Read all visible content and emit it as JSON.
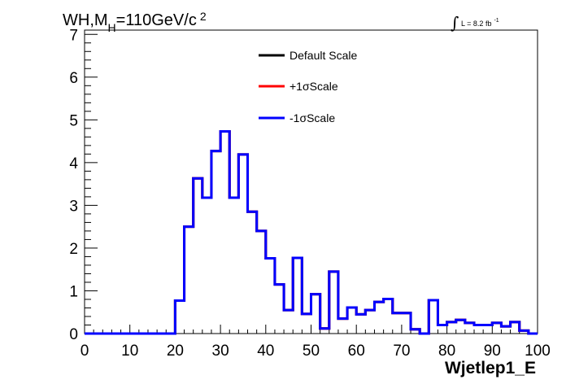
{
  "title": {
    "main": "WH,M",
    "sub": "H",
    "rest": "=110GeV/c",
    "sup": "2"
  },
  "lumi": {
    "integral_sign": "∫",
    "text": "L = 8.2 fb",
    "sup": "-1"
  },
  "chart_data": {
    "type": "histogram",
    "xlabel": "Wjetlep1_E",
    "ylabel": "",
    "xlim": [
      0,
      100
    ],
    "ylim": [
      0,
      7.1
    ],
    "xticks": [
      0,
      10,
      20,
      30,
      40,
      50,
      60,
      70,
      80,
      90,
      100
    ],
    "yticks": [
      0,
      1,
      2,
      3,
      4,
      5,
      6,
      7
    ],
    "bin_edges": [
      0,
      2,
      4,
      6,
      8,
      10,
      12,
      14,
      16,
      18,
      20,
      22,
      24,
      26,
      28,
      30,
      32,
      34,
      36,
      38,
      40,
      42,
      44,
      46,
      48,
      50,
      52,
      54,
      56,
      58,
      60,
      62,
      64,
      66,
      68,
      70,
      72,
      74,
      76,
      78,
      80,
      82,
      84,
      86,
      88,
      90,
      92,
      94,
      96,
      98,
      100
    ],
    "legend_position": "top-center",
    "series": [
      {
        "name": "Default Scale",
        "color": "#000000",
        "values": [
          0,
          0,
          0,
          0,
          0,
          0,
          0,
          0,
          0,
          0,
          0.77,
          2.5,
          3.63,
          3.18,
          4.27,
          4.73,
          3.18,
          4.19,
          2.85,
          2.4,
          1.76,
          1.15,
          0.55,
          1.77,
          0.46,
          0.92,
          0.12,
          1.45,
          0.35,
          0.61,
          0.45,
          0.55,
          0.74,
          0.81,
          0.48,
          0.48,
          0.1,
          0,
          0.78,
          0.2,
          0.27,
          0.32,
          0.25,
          0.2,
          0.2,
          0.25,
          0.17,
          0.27,
          0.07,
          0
        ]
      },
      {
        "name": "+1σScale",
        "color": "#ff0000",
        "values": [
          0,
          0,
          0,
          0,
          0,
          0,
          0,
          0,
          0,
          0,
          0.77,
          2.5,
          3.63,
          3.18,
          4.27,
          4.73,
          3.18,
          4.19,
          2.85,
          2.4,
          1.76,
          1.15,
          0.55,
          1.77,
          0.46,
          0.92,
          0.12,
          1.45,
          0.35,
          0.61,
          0.45,
          0.55,
          0.74,
          0.81,
          0.48,
          0.48,
          0.1,
          0,
          0.78,
          0.2,
          0.27,
          0.32,
          0.25,
          0.2,
          0.2,
          0.25,
          0.17,
          0.27,
          0.07,
          0
        ]
      },
      {
        "name": "-1σScale",
        "color": "#0000ff",
        "values": [
          0,
          0,
          0,
          0,
          0,
          0,
          0,
          0,
          0,
          0,
          0.77,
          2.5,
          3.63,
          3.18,
          4.27,
          4.73,
          3.18,
          4.19,
          2.85,
          2.4,
          1.76,
          1.15,
          0.55,
          1.77,
          0.46,
          0.92,
          0.12,
          1.45,
          0.35,
          0.61,
          0.45,
          0.55,
          0.74,
          0.81,
          0.48,
          0.48,
          0.1,
          0,
          0.78,
          0.2,
          0.27,
          0.32,
          0.25,
          0.2,
          0.2,
          0.25,
          0.17,
          0.27,
          0.07,
          0
        ]
      }
    ]
  }
}
